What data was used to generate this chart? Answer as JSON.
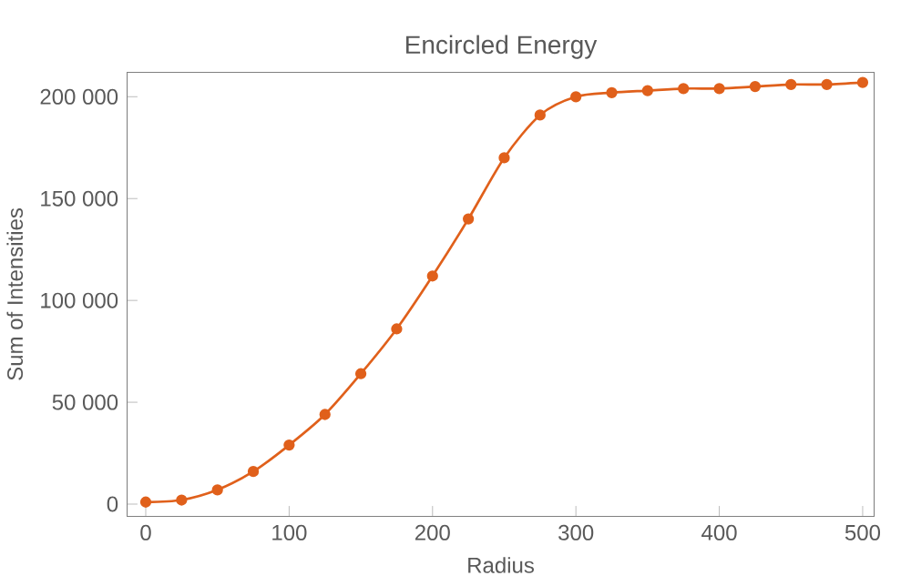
{
  "chart_data": {
    "type": "line",
    "title": "Encircled Energy",
    "xlabel": "Radius",
    "ylabel": "Sum of Intensities",
    "x": [
      0,
      25,
      50,
      75,
      100,
      125,
      150,
      175,
      200,
      225,
      250,
      275,
      300,
      325,
      350,
      375,
      400,
      425,
      450,
      475,
      500
    ],
    "series": [
      {
        "color": "#e0601b",
        "values": [
          1000,
          2000,
          7000,
          16000,
          29000,
          44000,
          64000,
          86000,
          112000,
          140000,
          170000,
          191000,
          200000,
          202000,
          203000,
          204000,
          204000,
          205000,
          206000,
          206000,
          207000
        ]
      }
    ],
    "marker": "circle",
    "line_style": "solid",
    "grid": false,
    "xlim": [
      -13,
      508
    ],
    "ylim": [
      -6000,
      212000
    ],
    "xticks": [
      0,
      100,
      200,
      300,
      400,
      500
    ],
    "yticks": [
      0,
      {
        "value": 50000,
        "label": "50 000"
      },
      {
        "value": 100000,
        "label": "100 000"
      },
      {
        "value": 150000,
        "label": "150 000"
      },
      {
        "value": 200000,
        "label": "200 000"
      }
    ]
  }
}
